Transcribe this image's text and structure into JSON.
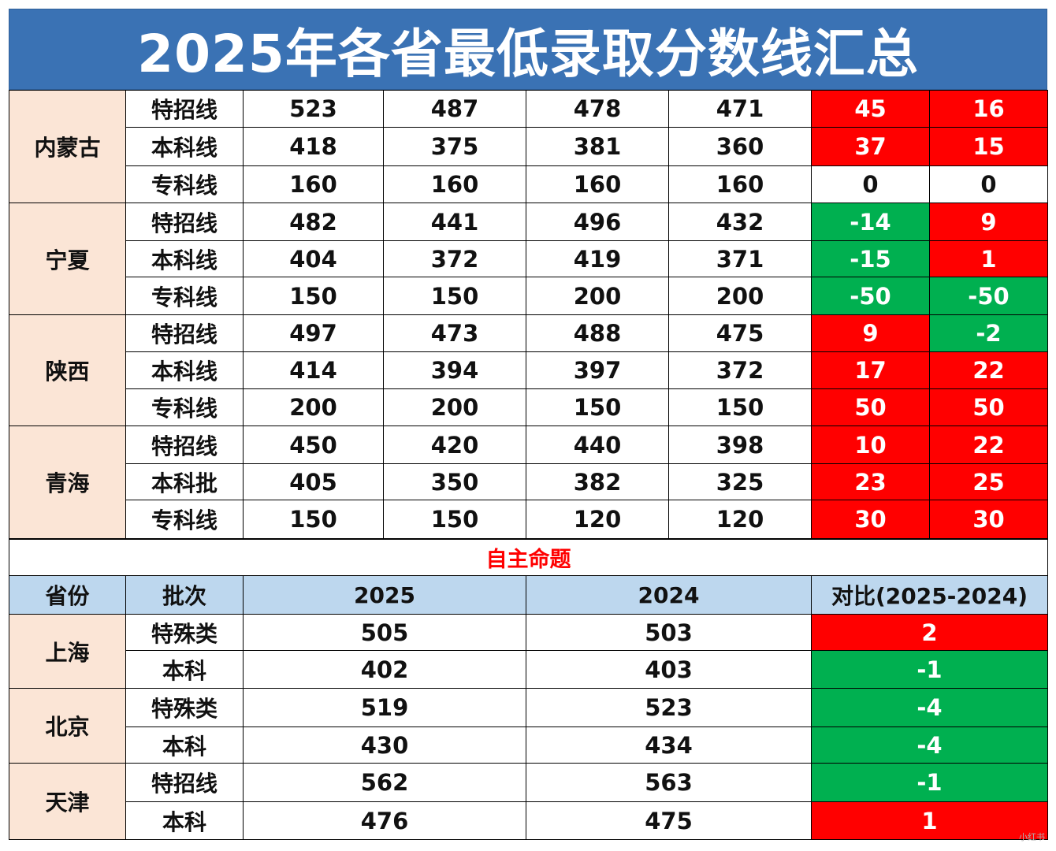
{
  "title": "2025年各省最低录取分数线汇总",
  "colors": {
    "positive": "#ff0000",
    "negative": "#00b050",
    "banner": "#3a72b4",
    "province_bg": "#fbe5d6",
    "header_bg": "#bdd7ee"
  },
  "group1": [
    {
      "province": "内蒙古",
      "rows": [
        {
          "batch": "特招线",
          "c1": "523",
          "c2": "487",
          "c3": "478",
          "c4": "471",
          "d1": "45",
          "d2": "16"
        },
        {
          "batch": "本科线",
          "c1": "418",
          "c2": "375",
          "c3": "381",
          "c4": "360",
          "d1": "37",
          "d2": "15"
        },
        {
          "batch": "专科线",
          "c1": "160",
          "c2": "160",
          "c3": "160",
          "c4": "160",
          "d1": "0",
          "d2": "0"
        }
      ]
    },
    {
      "province": "宁夏",
      "rows": [
        {
          "batch": "特招线",
          "c1": "482",
          "c2": "441",
          "c3": "496",
          "c4": "432",
          "d1": "-14",
          "d2": "9"
        },
        {
          "batch": "本科线",
          "c1": "404",
          "c2": "372",
          "c3": "419",
          "c4": "371",
          "d1": "-15",
          "d2": "1"
        },
        {
          "batch": "专科线",
          "c1": "150",
          "c2": "150",
          "c3": "200",
          "c4": "200",
          "d1": "-50",
          "d2": "-50"
        }
      ]
    },
    {
      "province": "陕西",
      "rows": [
        {
          "batch": "特招线",
          "c1": "497",
          "c2": "473",
          "c3": "488",
          "c4": "475",
          "d1": "9",
          "d2": "-2"
        },
        {
          "batch": "本科线",
          "c1": "414",
          "c2": "394",
          "c3": "397",
          "c4": "372",
          "d1": "17",
          "d2": "22"
        },
        {
          "batch": "专科线",
          "c1": "200",
          "c2": "200",
          "c3": "150",
          "c4": "150",
          "d1": "50",
          "d2": "50"
        }
      ]
    },
    {
      "province": "青海",
      "rows": [
        {
          "batch": "特招线",
          "c1": "450",
          "c2": "420",
          "c3": "440",
          "c4": "398",
          "d1": "10",
          "d2": "22"
        },
        {
          "batch": "本科批",
          "c1": "405",
          "c2": "350",
          "c3": "382",
          "c4": "325",
          "d1": "23",
          "d2": "25"
        },
        {
          "batch": "专科线",
          "c1": "150",
          "c2": "150",
          "c3": "120",
          "c4": "120",
          "d1": "30",
          "d2": "30"
        }
      ]
    }
  ],
  "section_label": "自主命题",
  "header": {
    "province": "省份",
    "batch": "批次",
    "y2025": "2025",
    "y2024": "2024",
    "compare": "对比(2025-2024)"
  },
  "group2": [
    {
      "province": "上海",
      "rows": [
        {
          "batch": "特殊类",
          "y2025": "505",
          "y2024": "503",
          "diff": "2"
        },
        {
          "batch": "本科",
          "y2025": "402",
          "y2024": "403",
          "diff": "-1"
        }
      ]
    },
    {
      "province": "北京",
      "rows": [
        {
          "batch": "特殊类",
          "y2025": "519",
          "y2024": "523",
          "diff": "-4"
        },
        {
          "batch": "本科",
          "y2025": "430",
          "y2024": "434",
          "diff": "-4"
        }
      ]
    },
    {
      "province": "天津",
      "rows": [
        {
          "batch": "特招线",
          "y2025": "562",
          "y2024": "563",
          "diff": "-1"
        },
        {
          "batch": "本科",
          "y2025": "476",
          "y2024": "475",
          "diff": "1"
        }
      ]
    }
  ],
  "watermark": "小红书"
}
